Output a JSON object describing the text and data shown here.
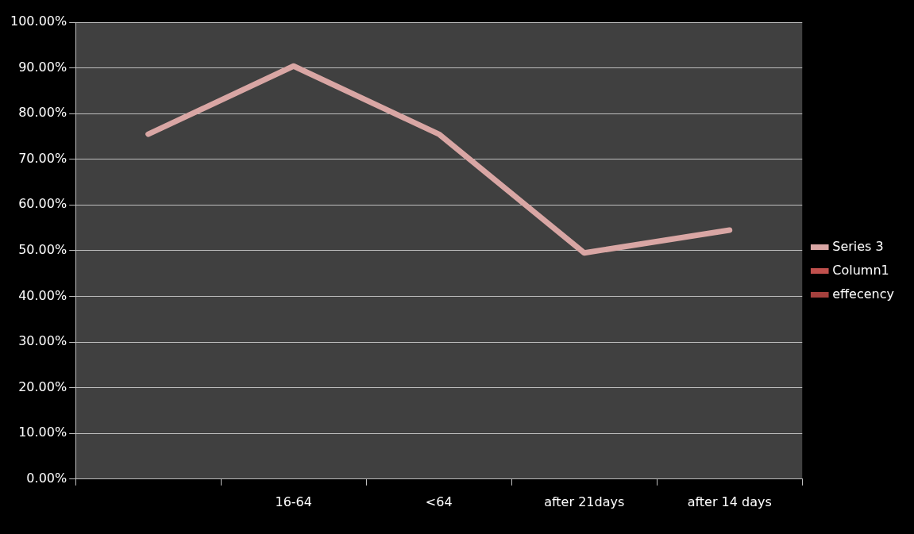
{
  "chart_data": {
    "type": "line",
    "categories": [
      null,
      "16-64",
      "<64",
      "after 21days",
      "after 14 days"
    ],
    "series": [
      {
        "name": "Series 3",
        "color": "#d9a6a4",
        "values": [
          75.5,
          90.4,
          75.5,
          49.5,
          54.5
        ]
      },
      {
        "name": "Column1",
        "color": "#c0504d",
        "values": [
          null,
          null,
          null,
          null,
          null
        ]
      },
      {
        "name": "effecency",
        "color": "#a4403d",
        "values": [
          null,
          null,
          null,
          null,
          null
        ]
      }
    ],
    "ylim": [
      0,
      100
    ],
    "yticks": [
      {
        "value": 0,
        "label": "0.00%"
      },
      {
        "value": 10,
        "label": "10.00%"
      },
      {
        "value": 20,
        "label": "20.00%"
      },
      {
        "value": 30,
        "label": "30.00%"
      },
      {
        "value": 40,
        "label": "40.00%"
      },
      {
        "value": 50,
        "label": "50.00%"
      },
      {
        "value": 60,
        "label": "60.00%"
      },
      {
        "value": 70,
        "label": "70.00%"
      },
      {
        "value": 80,
        "label": "80.00%"
      },
      {
        "value": 90,
        "label": "90.00%"
      },
      {
        "value": 100,
        "label": "100.00%"
      }
    ],
    "grid": "y",
    "legend": "right",
    "marker": "none",
    "line_style": "solid"
  }
}
